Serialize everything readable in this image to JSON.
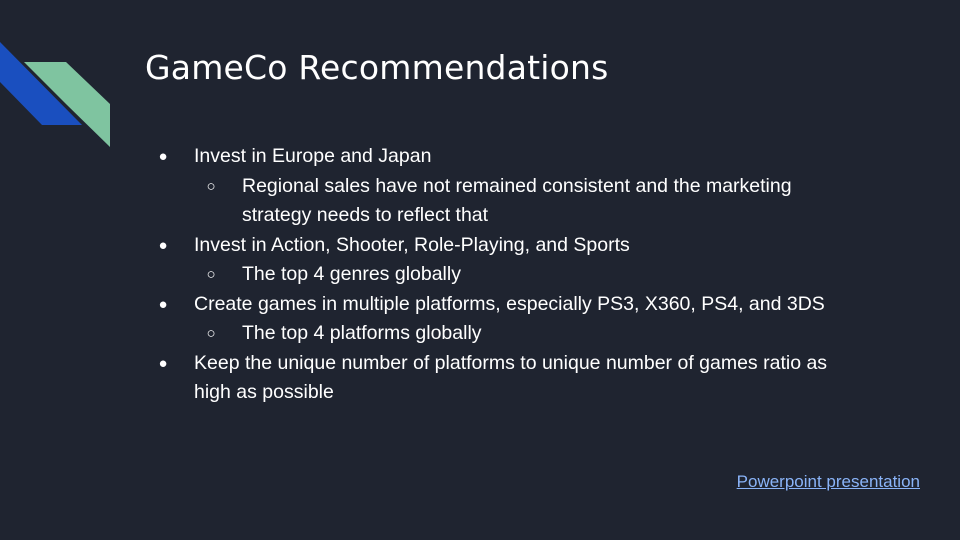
{
  "title": "GameCo Recommendations",
  "bullets": {
    "b1": {
      "text": "Invest in Europe and Japan",
      "sub1_line1": "Regional sales have not remained consistent and the marketing",
      "sub1_line2": "strategy needs to reflect that"
    },
    "b2": {
      "text": "Invest in Action, Shooter, Role-Playing, and Sports",
      "sub1": "The top 4 genres globally"
    },
    "b3": {
      "text": "Create games in multiple platforms, especially PS3, X360, PS4, and 3DS",
      "sub1": "The top 4 platforms globally"
    },
    "b4": {
      "line1": "Keep the unique number of platforms to unique number of games ratio as",
      "line2": "high as possible"
    }
  },
  "markers": {
    "level1": "●",
    "level2": "○"
  },
  "link": {
    "label": "Powerpoint presentation"
  },
  "colors": {
    "background": "#1f2430",
    "text": "#ffffff",
    "link": "#8ab4f8",
    "deco_blue": "#1a4fbf",
    "deco_green": "#7fc4a0"
  }
}
